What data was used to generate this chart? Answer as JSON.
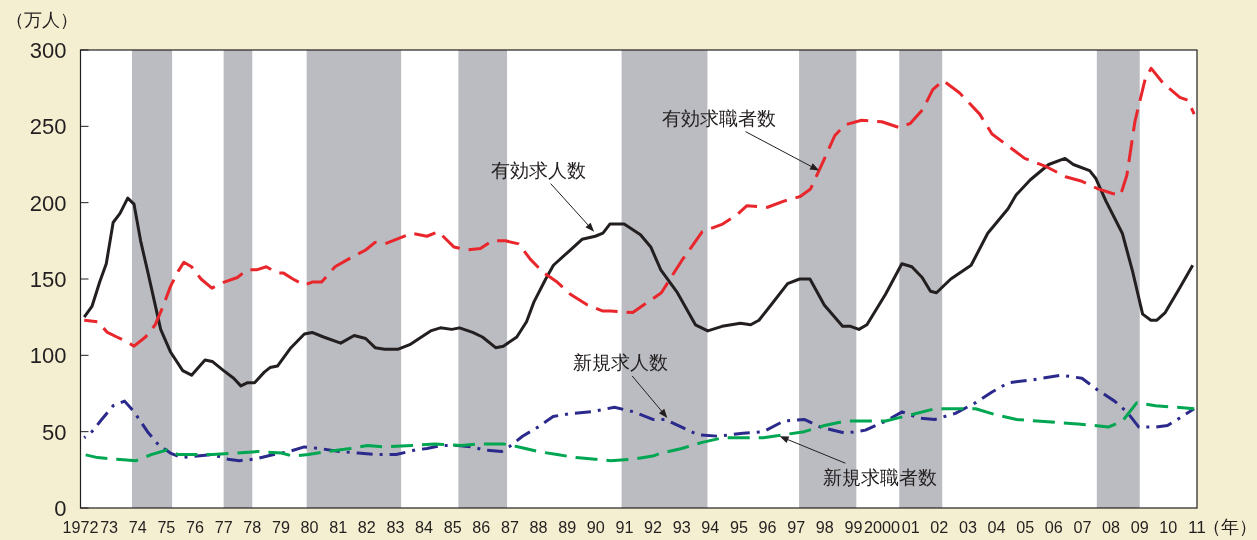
{
  "chart_data": {
    "type": "line",
    "ylabel": "（万人）",
    "xlabel": "（年）",
    "xlim": [
      1972,
      2011
    ],
    "ylim": [
      0,
      300
    ],
    "yticks": [
      0,
      50,
      100,
      150,
      200,
      250,
      300
    ],
    "xticks": [
      {
        "value": 1972,
        "label": "1972"
      },
      {
        "value": 1973,
        "label": "73"
      },
      {
        "value": 1974,
        "label": "74"
      },
      {
        "value": 1975,
        "label": "75"
      },
      {
        "value": 1976,
        "label": "76"
      },
      {
        "value": 1977,
        "label": "77"
      },
      {
        "value": 1978,
        "label": "78"
      },
      {
        "value": 1979,
        "label": "79"
      },
      {
        "value": 1980,
        "label": "80"
      },
      {
        "value": 1981,
        "label": "81"
      },
      {
        "value": 1982,
        "label": "82"
      },
      {
        "value": 1983,
        "label": "83"
      },
      {
        "value": 1984,
        "label": "84"
      },
      {
        "value": 1985,
        "label": "85"
      },
      {
        "value": 1986,
        "label": "86"
      },
      {
        "value": 1987,
        "label": "87"
      },
      {
        "value": 1988,
        "label": "88"
      },
      {
        "value": 1989,
        "label": "89"
      },
      {
        "value": 1990,
        "label": "90"
      },
      {
        "value": 1991,
        "label": "91"
      },
      {
        "value": 1992,
        "label": "92"
      },
      {
        "value": 1993,
        "label": "93"
      },
      {
        "value": 1994,
        "label": "94"
      },
      {
        "value": 1995,
        "label": "95"
      },
      {
        "value": 1996,
        "label": "96"
      },
      {
        "value": 1997,
        "label": "97"
      },
      {
        "value": 1998,
        "label": "98"
      },
      {
        "value": 1999,
        "label": "99"
      },
      {
        "value": 2000,
        "label": "2000"
      },
      {
        "value": 2001,
        "label": "01"
      },
      {
        "value": 2002,
        "label": "02"
      },
      {
        "value": 2003,
        "label": "03"
      },
      {
        "value": 2004,
        "label": "04"
      },
      {
        "value": 2005,
        "label": "05"
      },
      {
        "value": 2006,
        "label": "06"
      },
      {
        "value": 2007,
        "label": "07"
      },
      {
        "value": 2008,
        "label": "08"
      },
      {
        "value": 2009,
        "label": "09"
      },
      {
        "value": 2010,
        "label": "10"
      },
      {
        "value": 2011,
        "label": "11"
      }
    ],
    "grid": false,
    "marker": "none",
    "bands": [
      {
        "axis": "x",
        "from": 1973.8,
        "to": 1975.2,
        "color": "#bbbcc1"
      },
      {
        "axis": "x",
        "from": 1977.0,
        "to": 1978.0,
        "color": "#bbbcc1"
      },
      {
        "axis": "x",
        "from": 1979.9,
        "to": 1983.2,
        "color": "#bbbcc1"
      },
      {
        "axis": "x",
        "from": 1985.2,
        "to": 1986.9,
        "color": "#bbbcc1"
      },
      {
        "axis": "x",
        "from": 1990.9,
        "to": 1993.9,
        "color": "#bbbcc1"
      },
      {
        "axis": "x",
        "from": 1997.1,
        "to": 1999.1,
        "color": "#bbbcc1"
      },
      {
        "axis": "x",
        "from": 2000.6,
        "to": 2002.1,
        "color": "#bbbcc1"
      },
      {
        "axis": "x",
        "from": 2007.5,
        "to": 2009.0,
        "color": "#bbbcc1"
      }
    ],
    "series": [
      {
        "color": "#231f20",
        "line_style": "solid",
        "x": [
          1972.13,
          1972.4,
          1972.67,
          1972.9,
          1973.14,
          1973.38,
          1973.65,
          1973.87,
          1974.1,
          1974.37,
          1974.8,
          1975.15,
          1975.57,
          1975.88,
          1976.35,
          1976.6,
          1977.0,
          1977.35,
          1977.6,
          1977.82,
          1978.08,
          1978.42,
          1978.62,
          1978.88,
          1979.35,
          1979.82,
          1980.09,
          1980.49,
          1981.09,
          1981.56,
          1981.96,
          1982.29,
          1982.63,
          1983.1,
          1983.5,
          1983.83,
          1984.23,
          1984.57,
          1984.97,
          1985.24,
          1985.7,
          1986.04,
          1986.5,
          1986.77,
          1987.24,
          1987.58,
          1987.84,
          1988.25,
          1988.52,
          1989.05,
          1989.52,
          1989.98,
          1990.25,
          1990.49,
          1990.99,
          1991.56,
          1991.92,
          1992.27,
          1992.85,
          1993.48,
          1993.91,
          1994.41,
          1995.05,
          1995.41,
          1995.7,
          1996.12,
          1996.7,
          1997.12,
          1997.48,
          1997.98,
          1998.62,
          1998.9,
          1999.19,
          1999.47,
          2000.12,
          2000.69,
          2001.04,
          2001.4,
          2001.69,
          2001.9,
          2002.4,
          2003.11,
          2003.69,
          2004.4,
          2004.68,
          2005.18,
          2005.82,
          2006.39,
          2006.68,
          2007.25,
          2007.46,
          2007.82,
          2008.39,
          2008.75,
          2009.1,
          2009.39,
          2009.6,
          2009.89,
          2010.39,
          2010.85
        ],
        "values": [
          125,
          132,
          148,
          160,
          187,
          193,
          203,
          199,
          175,
          153,
          117,
          102,
          90,
          87,
          97,
          96,
          90,
          85,
          80,
          82,
          82,
          89,
          92,
          93,
          105,
          114,
          115,
          112,
          108,
          113,
          111,
          105,
          104,
          104,
          107,
          111,
          116,
          118,
          117,
          118,
          115,
          112,
          105,
          106,
          112,
          122,
          135,
          150,
          159,
          168,
          176,
          178,
          180,
          186,
          186,
          179,
          171,
          156,
          141,
          120,
          116,
          119,
          121,
          120,
          123,
          133,
          147,
          150,
          150,
          133,
          119,
          119,
          117,
          120,
          140,
          160,
          158,
          151,
          142,
          141,
          150,
          159,
          180,
          196,
          205,
          215,
          225,
          229,
          225,
          221,
          216,
          201,
          180,
          155,
          127,
          123,
          123,
          128,
          144,
          159
        ]
      },
      {
        "color": "#e8262b",
        "line_style": "dashed",
        "x": [
          1972.13,
          1972.6,
          1972.94,
          1973.27,
          1973.61,
          1973.87,
          1974.27,
          1974.61,
          1974.88,
          1975.14,
          1975.41,
          1975.61,
          1975.88,
          1976.21,
          1976.59,
          1977.02,
          1977.48,
          1977.82,
          1978.15,
          1978.49,
          1978.88,
          1979.08,
          1979.42,
          1979.82,
          1980.09,
          1980.42,
          1980.89,
          1981.36,
          1981.96,
          1982.29,
          1982.63,
          1983.03,
          1983.57,
          1984.1,
          1984.5,
          1985.04,
          1985.5,
          1985.97,
          1986.37,
          1986.84,
          1987.31,
          1987.71,
          1988.18,
          1988.65,
          1989.11,
          1989.71,
          1990.25,
          1990.51,
          1991.29,
          1992.29,
          1993.0,
          1993.72,
          1994.43,
          1994.93,
          1995.28,
          1996.0,
          1996.57,
          1997.14,
          1997.5,
          1997.92,
          1998.35,
          1998.71,
          1999.28,
          1999.99,
          2000.63,
          2000.99,
          2001.42,
          2001.77,
          2002.13,
          2002.7,
          2003.41,
          2003.84,
          2004.41,
          2004.98,
          2005.69,
          2006.41,
          2006.98,
          2007.55,
          2008.05,
          2008.33,
          2008.55,
          2008.83,
          2009.19,
          2009.4,
          2009.83,
          2010.4,
          2010.69,
          2010.9
        ],
        "values": [
          123,
          122,
          115,
          112,
          109,
          106,
          112,
          120,
          132,
          145,
          155,
          161,
          158,
          150,
          144,
          148,
          151,
          156,
          156,
          158,
          154,
          154,
          150,
          146,
          148,
          148,
          158,
          163,
          169,
          174,
          173,
          176,
          180,
          178,
          181,
          171,
          169,
          170,
          175,
          175,
          173,
          163,
          154,
          148,
          140,
          133,
          129,
          129,
          128,
          141,
          162,
          181,
          186,
          192,
          198,
          197,
          201,
          204,
          209,
          226,
          244,
          251,
          254,
          253,
          249,
          252,
          261,
          274,
          280,
          272,
          258,
          245,
          237,
          229,
          224,
          217,
          214,
          209,
          206,
          205,
          218,
          253,
          281,
          288,
          278,
          269,
          267,
          258
        ]
      },
      {
        "color": "#2b2a8c",
        "line_style": "dashdot",
        "x": [
          1972.13,
          1972.4,
          1972.74,
          1973.14,
          1973.54,
          1973.87,
          1974.34,
          1974.74,
          1975.14,
          1975.54,
          1976.08,
          1976.61,
          1977.15,
          1977.55,
          1978.08,
          1978.75,
          1979.29,
          1979.82,
          1980.36,
          1981.03,
          1981.7,
          1982.37,
          1983.03,
          1983.7,
          1984.1,
          1984.64,
          1985.17,
          1985.7,
          1986.1,
          1986.71,
          1986.97,
          1987.44,
          1987.98,
          1988.51,
          1989.18,
          1989.85,
          1990.65,
          1991.32,
          1991.99,
          1992.43,
          1993.0,
          1993.57,
          1994.29,
          1995.14,
          1995.85,
          1996.57,
          1997.28,
          1997.85,
          1998.71,
          1999.42,
          2000.13,
          2000.7,
          2001.27,
          2001.84,
          2002.56,
          2003.27,
          2003.84,
          2004.41,
          2005.27,
          2006.26,
          2006.98,
          2007.55,
          2008.12,
          2008.55,
          2008.97,
          2009.55,
          2009.97,
          2010.4,
          2010.9
        ],
        "values": [
          46,
          50,
          58,
          67,
          70,
          63,
          50,
          41,
          36,
          33,
          34,
          35,
          32,
          31,
          32,
          35,
          37,
          40,
          39,
          37,
          36,
          35,
          35,
          38,
          39,
          41,
          41,
          40,
          38,
          37,
          40,
          47,
          53,
          60,
          62,
          63,
          66,
          63,
          58,
          58,
          53,
          48,
          47,
          49,
          50,
          57,
          58,
          53,
          49,
          51,
          57,
          63,
          59,
          58,
          62,
          69,
          76,
          82,
          84,
          87,
          85,
          77,
          70,
          63,
          53,
          53,
          54,
          59,
          65
        ]
      },
      {
        "color": "#00a651",
        "line_style": "dashed",
        "x": [
          1972.13,
          1972.6,
          1973.27,
          1973.94,
          1974.47,
          1975.01,
          1975.41,
          1975.88,
          1976.61,
          1977.42,
          1978.22,
          1979.02,
          1979.42,
          1979.96,
          1980.62,
          1981.42,
          1982.03,
          1982.63,
          1983.57,
          1984.37,
          1985.3,
          1985.97,
          1986.77,
          1987.31,
          1987.98,
          1988.65,
          1989.31,
          1989.98,
          1990.52,
          1991.32,
          1991.99,
          1992.29,
          1993.0,
          1993.72,
          1994.43,
          1995.14,
          1995.85,
          1996.57,
          1997.28,
          1997.99,
          1998.71,
          1999.42,
          2000.13,
          2000.99,
          2001.84,
          2002.56,
          2003.27,
          2003.98,
          2004.7,
          2005.41,
          2006.12,
          2006.84,
          2007.41,
          2007.9,
          2008.4,
          2008.9,
          2009.55,
          2010.26,
          2010.9
        ],
        "values": [
          35,
          33,
          32,
          31,
          35,
          38,
          35,
          35,
          35,
          36,
          37,
          36,
          34,
          35,
          37,
          39,
          41,
          40,
          41,
          42,
          41,
          42,
          42,
          40,
          37,
          35,
          33,
          32,
          31,
          32,
          34,
          36,
          39,
          43,
          46,
          46,
          46,
          48,
          50,
          54,
          57,
          57,
          57,
          61,
          65,
          65,
          65,
          61,
          58,
          57,
          56,
          55,
          54,
          53,
          57,
          69,
          67,
          66,
          65
        ]
      }
    ],
    "annotations": [
      {
        "text": "有効求人数",
        "x": 1989.94,
        "y": 181
      },
      {
        "text": "有効求職者数",
        "x": 1997.8,
        "y": 221
      },
      {
        "text": "新規求人数",
        "x": 1992.5,
        "y": 59
      },
      {
        "text": "新規求職者数",
        "x": 1996.42,
        "y": 47
      }
    ]
  }
}
